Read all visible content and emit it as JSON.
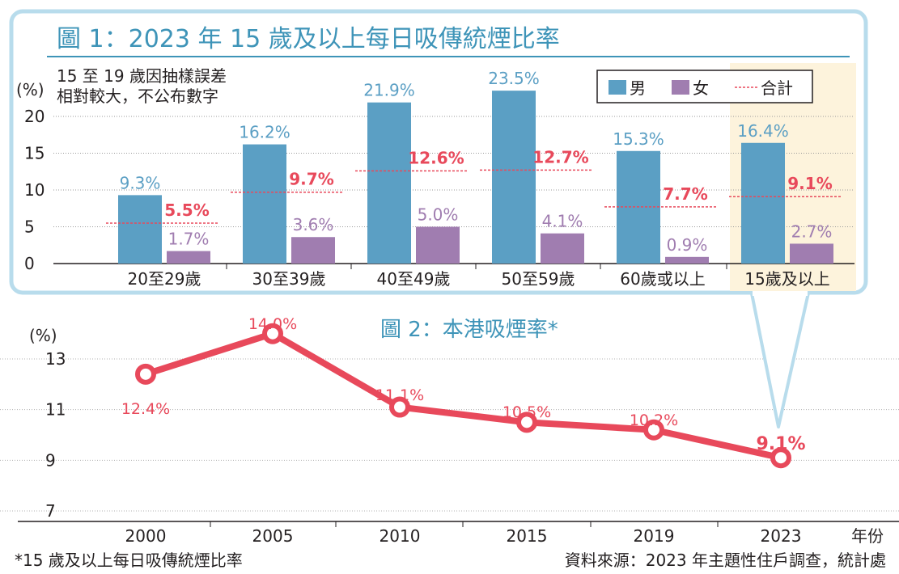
{
  "colors": {
    "male": "#5b9fc4",
    "female": "#a07db0",
    "total": "#e8495b",
    "title": "#3e94b8",
    "panel_border": "#b8dcec",
    "highlight": "#fdf3dc",
    "line2": "#e8495b"
  },
  "chart_data": [
    {
      "type": "bar",
      "title": "圖 1：2023 年 15 歲及以上每日吸傳統煙比率",
      "ylabel": "(%)",
      "ylim": [
        0,
        22
      ],
      "yticks": [
        "0",
        "5",
        "10",
        "15",
        "20"
      ],
      "note_lines": [
        "15 至 19 歲因抽樣誤差",
        "相對較大，不公布數字"
      ],
      "categories": [
        "20至29歲",
        "30至39歲",
        "40至49歲",
        "50至59歲",
        "60歲或以上",
        "15歲及以上"
      ],
      "series": [
        {
          "name": "男",
          "values": [
            9.3,
            16.2,
            21.9,
            23.5,
            15.3,
            16.4
          ],
          "labels": [
            "9.3%",
            "16.2%",
            "21.9%",
            "23.5%",
            "15.3%",
            "16.4%"
          ]
        },
        {
          "name": "女",
          "values": [
            1.7,
            3.6,
            5.0,
            4.1,
            0.9,
            2.7
          ],
          "labels": [
            "1.7%",
            "3.6%",
            "5.0%",
            "4.1%",
            "0.9%",
            "2.7%"
          ]
        },
        {
          "name": "合計",
          "values": [
            5.5,
            9.7,
            12.6,
            12.7,
            7.7,
            9.1
          ],
          "labels": [
            "5.5%",
            "9.7%",
            "12.6%",
            "12.7%",
            "7.7%",
            "9.1%"
          ]
        }
      ],
      "legend": [
        "男",
        "女",
        "合計"
      ],
      "legend_position": "top-right",
      "highlight_category": "15歲及以上"
    },
    {
      "type": "line",
      "title": "圖 2：本港吸煙率*",
      "ylabel": "(%)",
      "xlabel": "年份",
      "ylim": [
        7,
        13
      ],
      "yticks": [
        "7",
        "9",
        "11",
        "13"
      ],
      "x": [
        "2000",
        "2005",
        "2010",
        "2015",
        "2019",
        "2023"
      ],
      "values": [
        12.4,
        14.0,
        11.1,
        10.5,
        10.2,
        9.1
      ],
      "labels": [
        "12.4%",
        "14.0%",
        "11.1%",
        "10.5%",
        "10.2%",
        "9.1%"
      ]
    }
  ],
  "footnote": "*15 歲及以上每日吸傳統煙比率",
  "source": "資料來源：2023 年主題性住戶調查，統計處"
}
